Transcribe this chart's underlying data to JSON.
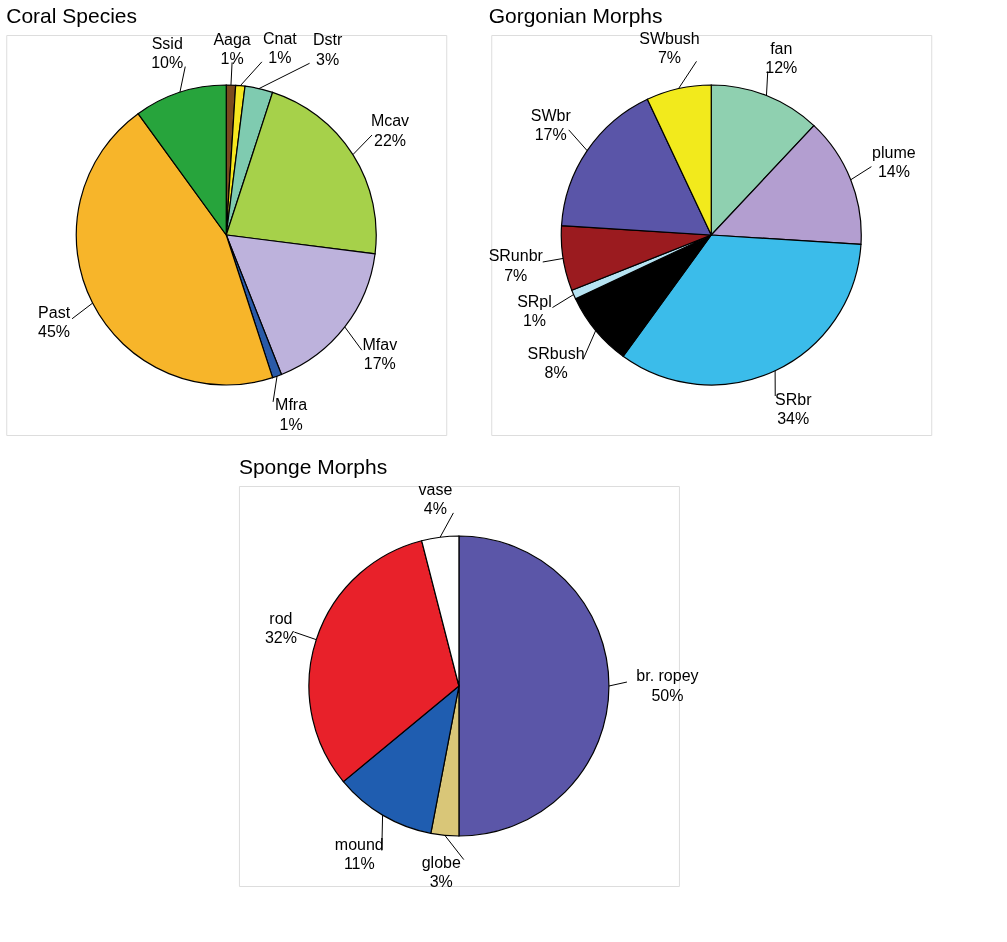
{
  "chart_data": [
    {
      "type": "pie",
      "title": "Coral Species",
      "categories": [
        "Aaga",
        "Cnat",
        "Dstr",
        "Mcav",
        "Mfav",
        "Mfra",
        "Past",
        "Ssid"
      ],
      "values": [
        1,
        1,
        3,
        22,
        17,
        1,
        45,
        10
      ],
      "value_labels": [
        "1%",
        "1%",
        "3%",
        "22%",
        "17%",
        "1%",
        "45%",
        "10%"
      ],
      "colors": [
        "#7a4a1e",
        "#f5e61f",
        "#7fcbb0",
        "#a6d14a",
        "#bdb2dc",
        "#2a5aa8",
        "#f7b52a",
        "#27a43c"
      ]
    },
    {
      "type": "pie",
      "title": "Gorgonian Morphs",
      "categories": [
        "fan",
        "plume",
        "SRbr",
        "SRbush",
        "SRpl",
        "SRunbr",
        "SWbr",
        "SWbush"
      ],
      "values": [
        12,
        14,
        34,
        8,
        1,
        7,
        17,
        7
      ],
      "value_labels": [
        "12%",
        "14%",
        "34%",
        "8%",
        "1%",
        "7%",
        "17%",
        "7%"
      ],
      "colors": [
        "#8fd0b0",
        "#b39ed0",
        "#3bbcea",
        "#000000",
        "#b6e3f2",
        "#9b1b1f",
        "#5a55a8",
        "#f2ea1c"
      ]
    },
    {
      "type": "pie",
      "title": "Sponge Morphs",
      "categories": [
        "br. ropey",
        "globe",
        "mound",
        "rod",
        "vase"
      ],
      "values": [
        50,
        3,
        11,
        32,
        4
      ],
      "value_labels": [
        "50%",
        "3%",
        "11%",
        "32%",
        "4%"
      ],
      "colors": [
        "#5b56a8",
        "#d9c678",
        "#1f5db0",
        "#e8212a",
        "#ffffff"
      ]
    }
  ]
}
